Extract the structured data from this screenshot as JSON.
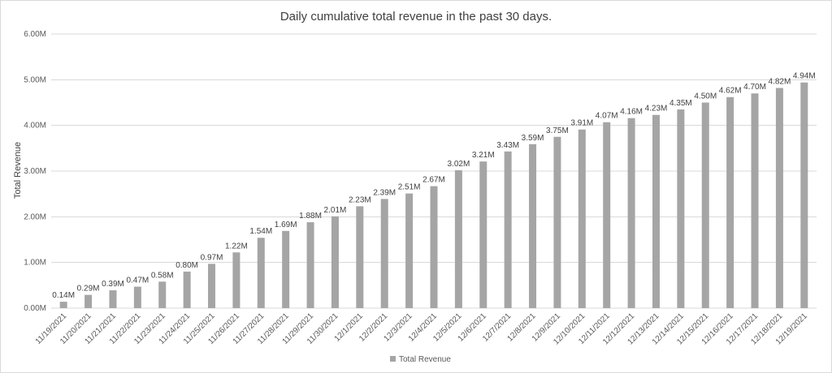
{
  "chart_data": {
    "type": "bar",
    "title": "Daily cumulative total revenue in the past 30 days.",
    "xlabel": "",
    "ylabel": "Total Revenue",
    "ylim": [
      0,
      6
    ],
    "y_ticks": [
      "0.00M",
      "1.00M",
      "2.00M",
      "3.00M",
      "4.00M",
      "5.00M",
      "6.00M"
    ],
    "grid": true,
    "legend_position": "bottom",
    "categories": [
      "11/19/2021",
      "11/20/2021",
      "11/21/2021",
      "11/22/2021",
      "11/23/2021",
      "11/24/2021",
      "11/25/2021",
      "11/26/2021",
      "11/27/2021",
      "11/28/2021",
      "11/29/2021",
      "11/30/2021",
      "12/1/2021",
      "12/2/2021",
      "12/3/2021",
      "12/4/2021",
      "12/5/2021",
      "12/6/2021",
      "12/7/2021",
      "12/8/2021",
      "12/9/2021",
      "12/10/2021",
      "12/11/2021",
      "12/12/2021",
      "12/13/2021",
      "12/14/2021",
      "12/15/2021",
      "12/16/2021",
      "12/17/2021",
      "12/18/2021",
      "12/19/2021"
    ],
    "series": [
      {
        "name": "Total Revenue",
        "color": "#a5a5a5",
        "values": [
          0.14,
          0.29,
          0.39,
          0.47,
          0.58,
          0.8,
          0.97,
          1.22,
          1.54,
          1.69,
          1.88,
          2.01,
          2.23,
          2.39,
          2.51,
          2.67,
          3.02,
          3.21,
          3.43,
          3.59,
          3.75,
          3.91,
          4.07,
          4.16,
          4.23,
          4.35,
          4.5,
          4.62,
          4.7,
          4.82,
          4.94
        ],
        "labels": [
          "0.14M",
          "0.29M",
          "0.39M",
          "0.47M",
          "0.58M",
          "0.80M",
          "0.97M",
          "1.22M",
          "1.54M",
          "1.69M",
          "1.88M",
          "2.01M",
          "2.23M",
          "2.39M",
          "2.51M",
          "2.67M",
          "3.02M",
          "3.21M",
          "3.43M",
          "3.59M",
          "3.75M",
          "3.91M",
          "4.07M",
          "4.16M",
          "4.23M",
          "4.35M",
          "4.50M",
          "4.62M",
          "4.70M",
          "4.82M",
          "4.94M"
        ]
      }
    ],
    "colors": {
      "bar": "#a5a5a5",
      "grid": "#d9d9d9",
      "text": "#595959",
      "title": "#404040",
      "label": "#404040"
    }
  }
}
